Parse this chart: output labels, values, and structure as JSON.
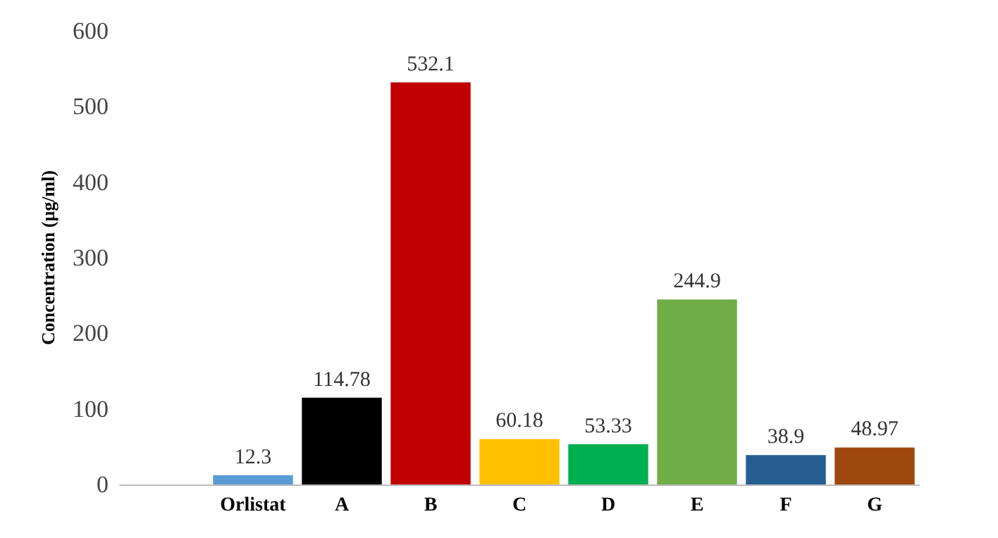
{
  "chart_data": {
    "type": "bar",
    "ylabel": "Concentration (µg/ml)",
    "categories": [
      null,
      "Orlistat",
      "A",
      "B",
      "C",
      "D",
      "E",
      "F",
      "G"
    ],
    "values": [
      null,
      12.3,
      114.78,
      532.1,
      60.18,
      53.33,
      244.9,
      38.9,
      48.97
    ],
    "colors": [
      "#5b9bd5",
      "#5b9bd5",
      "#000000",
      "#c00000",
      "#ffc000",
      "#00b050",
      "#70ad47",
      "#255e91",
      "#9e480e"
    ],
    "ylim": [
      0,
      600
    ],
    "yticks": [
      0,
      100,
      200,
      300,
      400,
      500,
      600
    ],
    "grid": false,
    "data_labels": true
  }
}
